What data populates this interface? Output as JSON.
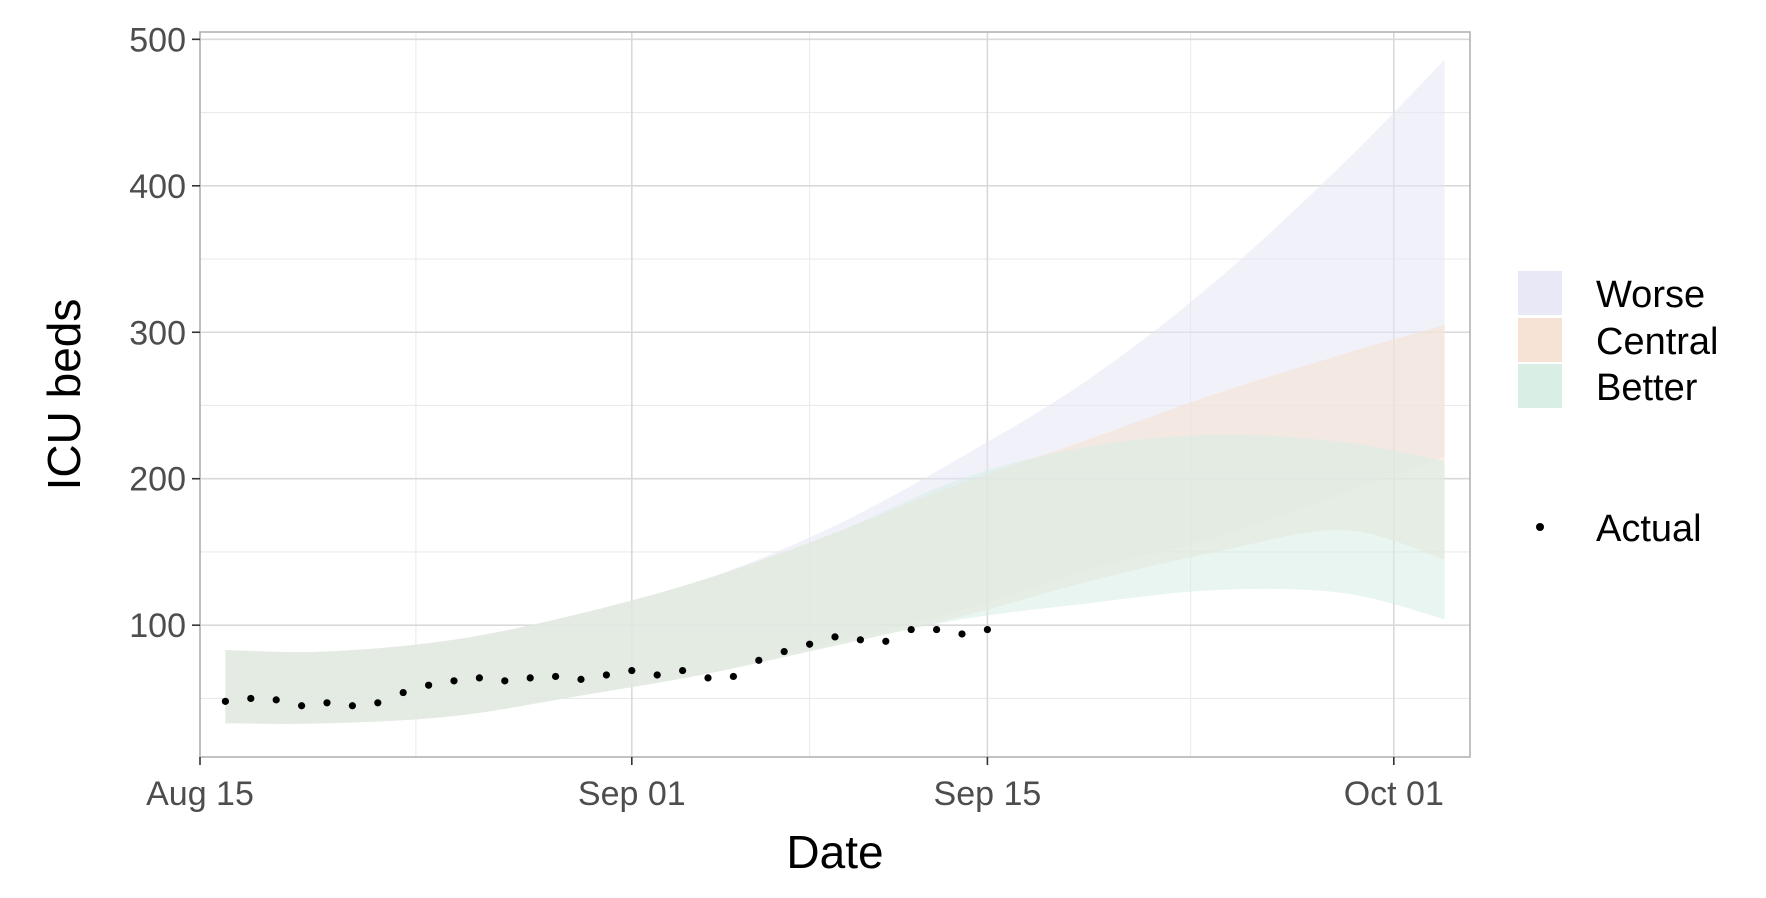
{
  "chart_data": {
    "type": "area",
    "xlabel": "Date",
    "ylabel": "ICU beds",
    "x_type": "date",
    "xlim": [
      "2020-08-15",
      "2020-10-04"
    ],
    "ylim": [
      10,
      505
    ],
    "x_ticks": [
      {
        "date": "2020-08-15",
        "label": "Aug 15"
      },
      {
        "date": "2020-09-01",
        "label": "Sep 01"
      },
      {
        "date": "2020-09-15",
        "label": "Sep 15"
      },
      {
        "date": "2020-10-01",
        "label": "Oct 01"
      }
    ],
    "y_ticks": [
      100,
      200,
      300,
      400,
      500
    ],
    "grid": true,
    "legend_position": "right",
    "bands": [
      {
        "name": "Worse",
        "color": "#e6e6f5",
        "x": [
          "2020-08-16",
          "2020-08-20",
          "2020-08-25",
          "2020-08-30",
          "2020-09-04",
          "2020-09-09",
          "2020-09-14",
          "2020-09-19",
          "2020-09-24",
          "2020-09-29",
          "2020-10-03"
        ],
        "upper": [
          83,
          82,
          90,
          108,
          132,
          168,
          215,
          268,
          335,
          415,
          486
        ],
        "lower": [
          33,
          33,
          38,
          52,
          67,
          88,
          110,
          138,
          160,
          190,
          215
        ]
      },
      {
        "name": "Central",
        "color": "#f5e0d0",
        "x": [
          "2020-08-16",
          "2020-08-20",
          "2020-08-25",
          "2020-08-30",
          "2020-09-04",
          "2020-09-09",
          "2020-09-14",
          "2020-09-19",
          "2020-09-24",
          "2020-09-29",
          "2020-10-03"
        ],
        "upper": [
          83,
          82,
          90,
          108,
          132,
          163,
          197,
          227,
          258,
          285,
          305
        ],
        "lower": [
          33,
          33,
          38,
          52,
          67,
          86,
          106,
          130,
          150,
          165,
          145
        ]
      },
      {
        "name": "Better",
        "color": "#d5ede3",
        "x": [
          "2020-08-16",
          "2020-08-20",
          "2020-08-25",
          "2020-08-30",
          "2020-09-04",
          "2020-09-09",
          "2020-09-14",
          "2020-09-19",
          "2020-09-24",
          "2020-09-29",
          "2020-10-03"
        ],
        "upper": [
          83,
          82,
          90,
          108,
          132,
          163,
          200,
          222,
          230,
          225,
          212
        ],
        "lower": [
          33,
          33,
          38,
          52,
          67,
          86,
          104,
          115,
          124,
          122,
          104
        ]
      }
    ],
    "points": {
      "name": "Actual",
      "color": "#000000",
      "x": [
        "2020-08-16",
        "2020-08-17",
        "2020-08-18",
        "2020-08-19",
        "2020-08-20",
        "2020-08-21",
        "2020-08-22",
        "2020-08-23",
        "2020-08-24",
        "2020-08-25",
        "2020-08-26",
        "2020-08-27",
        "2020-08-28",
        "2020-08-29",
        "2020-08-30",
        "2020-08-31",
        "2020-09-01",
        "2020-09-02",
        "2020-09-03",
        "2020-09-04",
        "2020-09-05",
        "2020-09-06",
        "2020-09-07",
        "2020-09-08",
        "2020-09-09",
        "2020-09-10",
        "2020-09-11",
        "2020-09-12",
        "2020-09-13",
        "2020-09-14",
        "2020-09-15"
      ],
      "y": [
        48,
        50,
        49,
        45,
        47,
        45,
        47,
        54,
        59,
        62,
        64,
        62,
        64,
        65,
        63,
        66,
        69,
        66,
        69,
        64,
        65,
        76,
        82,
        87,
        92,
        90,
        89,
        97,
        97,
        94,
        97
      ]
    },
    "legend": [
      {
        "label": "Worse",
        "kind": "band"
      },
      {
        "label": "Central",
        "kind": "band"
      },
      {
        "label": "Better",
        "kind": "band"
      },
      {
        "label": "Actual",
        "kind": "point"
      }
    ]
  }
}
